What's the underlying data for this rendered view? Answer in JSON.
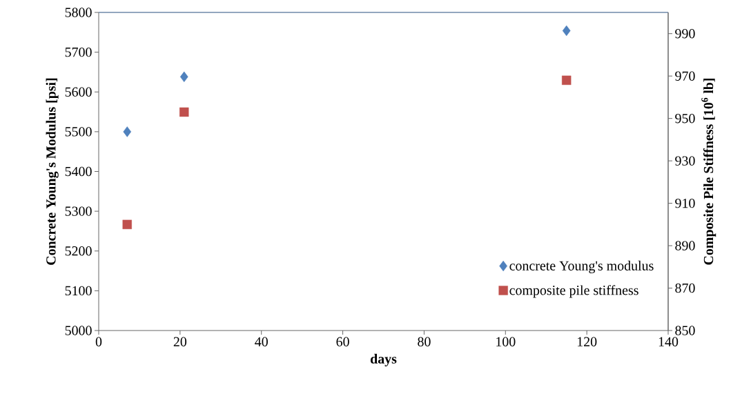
{
  "chart_data": {
    "type": "scatter",
    "xlabel": "days",
    "ylabel": "Concrete Young's Modulus [psi]",
    "y2label": "Composite Pile Stiffness [10$^{6}$ lb]",
    "series": [
      {
        "name": "concrete Young's modulus",
        "color": "#4f81bd",
        "marker": "diamond",
        "x": [
          7,
          21,
          115
        ],
        "values": [
          5500,
          5638,
          5754
        ]
      },
      {
        "name": "composite pile stiffness",
        "color": "#c0504d",
        "marker": "square",
        "axis": "y2",
        "x": [
          7,
          21,
          115
        ],
        "values": [
          900,
          953,
          968
        ]
      }
    ],
    "xlim": [
      0,
      140
    ],
    "xticks": [
      0,
      20,
      40,
      60,
      80,
      100,
      120,
      140
    ],
    "ylim": [
      5000,
      5800
    ],
    "yticks": [
      5000,
      5100,
      5200,
      5300,
      5400,
      5500,
      5600,
      5700,
      5800
    ],
    "y2lim": [
      850,
      1000
    ],
    "y2ticks": [
      850,
      870,
      890,
      910,
      930,
      950,
      970,
      990
    ],
    "legend": "bottom right"
  }
}
